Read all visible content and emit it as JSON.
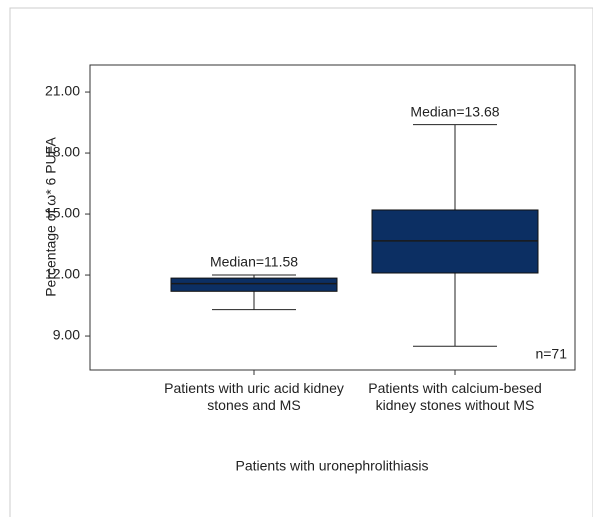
{
  "chart_data": {
    "type": "box",
    "y_label": "Percentage of ω* 6 PUFA",
    "x_label": "Patients with uronephrolithiasis",
    "categories": [
      "Patients with uric acid kidney stones and MS",
      "Patients with calcium-besed kidney stones without MS"
    ],
    "boxes": [
      {
        "min": 10.3,
        "q1": 11.2,
        "median": 11.58,
        "q3": 11.85,
        "max": 12.0
      },
      {
        "min": 8.5,
        "q1": 12.1,
        "median": 13.68,
        "q3": 15.2,
        "max": 19.4
      }
    ],
    "annotations": [
      "Median=11.58",
      "Median=13.68"
    ],
    "n_label": "n=71",
    "color": "#0c2f63",
    "ylim": [
      7.33,
      22.33
    ],
    "yticks": [
      {
        "value": 9,
        "label": "9.00"
      },
      {
        "value": 12,
        "label": "12.00"
      },
      {
        "value": 15,
        "label": "15.00"
      },
      {
        "value": 18,
        "label": "18.00"
      },
      {
        "value": 21,
        "label": "21.00"
      }
    ]
  }
}
